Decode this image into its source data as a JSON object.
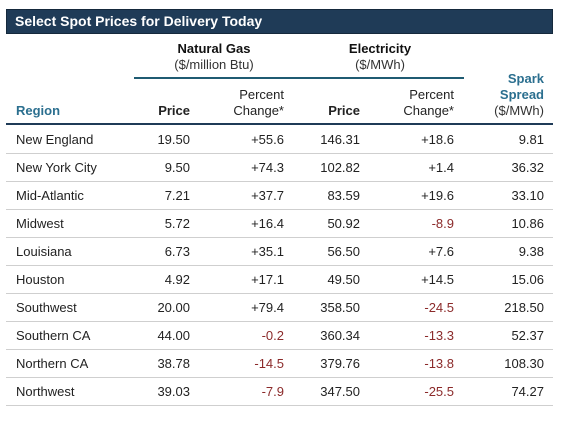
{
  "title": "Select Spot Prices for Delivery Today",
  "groups": {
    "natural_gas": {
      "name": "Natural Gas",
      "unit": "($/million Btu)"
    },
    "electricity": {
      "name": "Electricity",
      "unit": "($/MWh)"
    }
  },
  "columns": {
    "region": "Region",
    "gas_price": "Price",
    "gas_pct_line1": "Percent",
    "gas_pct_line2": "Change*",
    "elec_price": "Price",
    "elec_pct_line1": "Percent",
    "elec_pct_line2": "Change*",
    "spark_line1": "Spark",
    "spark_line2": "Spread",
    "spark_unit": "($/MWh)"
  },
  "rows": [
    {
      "region": "New England",
      "gas_price": "19.50",
      "gas_pct": "+55.6",
      "elec_price": "146.31",
      "elec_pct": "+18.6",
      "spark": "9.81"
    },
    {
      "region": "New York City",
      "gas_price": "9.50",
      "gas_pct": "+74.3",
      "elec_price": "102.82",
      "elec_pct": "+1.4",
      "spark": "36.32"
    },
    {
      "region": "Mid-Atlantic",
      "gas_price": "7.21",
      "gas_pct": "+37.7",
      "elec_price": "83.59",
      "elec_pct": "+19.6",
      "spark": "33.10"
    },
    {
      "region": "Midwest",
      "gas_price": "5.72",
      "gas_pct": "+16.4",
      "elec_price": "50.92",
      "elec_pct": "-8.9",
      "spark": "10.86"
    },
    {
      "region": "Louisiana",
      "gas_price": "6.73",
      "gas_pct": "+35.1",
      "elec_price": "56.50",
      "elec_pct": "+7.6",
      "spark": "9.38"
    },
    {
      "region": "Houston",
      "gas_price": "4.92",
      "gas_pct": "+17.1",
      "elec_price": "49.50",
      "elec_pct": "+14.5",
      "spark": "15.06"
    },
    {
      "region": "Southwest",
      "gas_price": "20.00",
      "gas_pct": "+79.4",
      "elec_price": "358.50",
      "elec_pct": "-24.5",
      "spark": "218.50"
    },
    {
      "region": "Southern CA",
      "gas_price": "44.00",
      "gas_pct": "-0.2",
      "elec_price": "360.34",
      "elec_pct": "-13.3",
      "spark": "52.37"
    },
    {
      "region": "Northern CA",
      "gas_price": "38.78",
      "gas_pct": "-14.5",
      "elec_price": "379.76",
      "elec_pct": "-13.8",
      "spark": "108.30"
    },
    {
      "region": "Northwest",
      "gas_price": "39.03",
      "gas_pct": "-7.9",
      "elec_price": "347.50",
      "elec_pct": "-25.5",
      "spark": "74.27"
    }
  ],
  "colors": {
    "header_bg": "#1f3b57",
    "accent": "#2b6f8f",
    "negative": "#8b2a2a"
  }
}
